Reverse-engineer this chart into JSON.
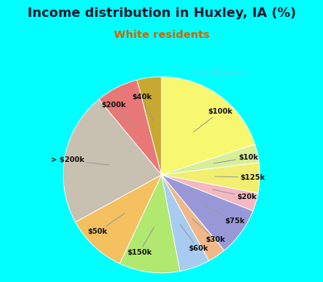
{
  "title": "Income distribution in Huxley, IA (%)",
  "subtitle": "White residents",
  "watermark": "City-Data.com",
  "labels": [
    "$100k",
    "$10k",
    "$125k",
    "$20k",
    "$75k",
    "$30k",
    "$60k",
    "$150k",
    "$50k",
    "> $200k",
    "$200k",
    "$40k"
  ],
  "values": [
    20,
    3,
    5,
    3,
    8,
    3,
    5,
    10,
    10,
    22,
    7,
    4
  ],
  "colors": [
    "#f7f870",
    "#d8ee98",
    "#f2ef70",
    "#f5b8c0",
    "#9898d8",
    "#f0b888",
    "#a8ccf0",
    "#b0e870",
    "#f5c060",
    "#c8c0b0",
    "#e87878",
    "#c8a830"
  ],
  "bg_cyan": "#00ffff",
  "bg_chart_top": "#daf5ec",
  "bg_chart_bottom": "#e8f8f0",
  "title_color": "#1a1a2e",
  "subtitle_color": "#cc6600",
  "label_color": "#111111",
  "title_fontsize": 11.5,
  "subtitle_fontsize": 9.5,
  "label_fontsize": 6.5,
  "watermark_color": "#aaaacc",
  "watermark_alpha": 0.55
}
